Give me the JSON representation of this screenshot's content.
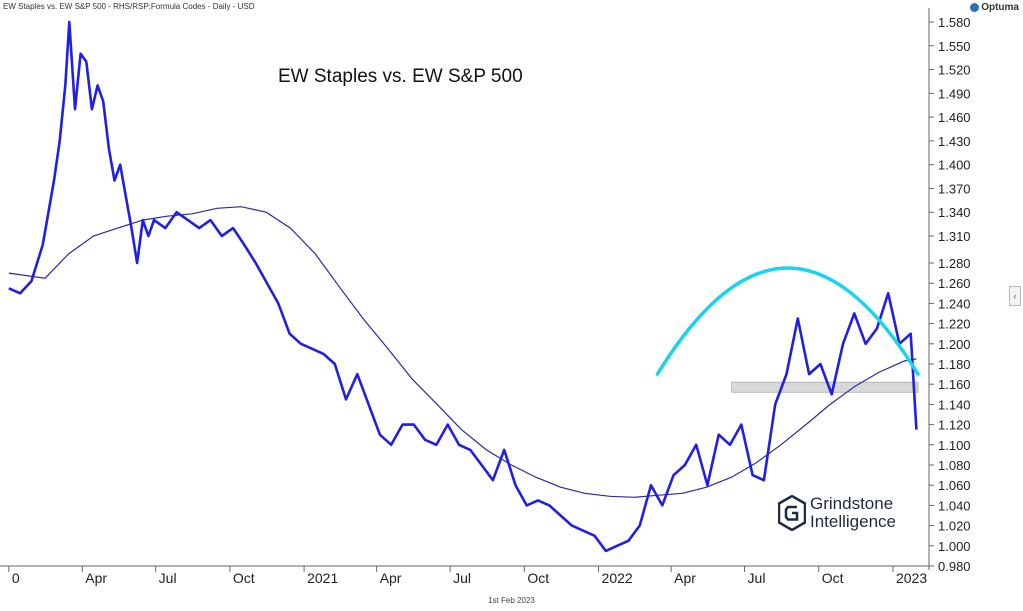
{
  "header": {
    "description": "EW Staples vs. EW S&P 500 - RHS/RSP:Formula Codes - Daily - USD",
    "brand": "Optuma"
  },
  "footer_date": "1st Feb 2023",
  "logo": {
    "line1": "Grindstone",
    "line2": "Intelligence"
  },
  "colors": {
    "price_line": "#1f1fe6",
    "moving_average": "#2a2aa0",
    "arc": "#19d3f0",
    "support_band": "#d8d8d8",
    "axis_text": "#222222"
  },
  "chart_data": {
    "type": "line",
    "title": "EW Staples vs. EW S&P 500",
    "y_axis": {
      "side": "right",
      "ylim": [
        0.98,
        1.59
      ],
      "ticks": [
        "1.580",
        "1.550",
        "1.520",
        "1.490",
        "1.460",
        "1.430",
        "1.400",
        "1.370",
        "1.340",
        "1.310",
        "1.280",
        "1.260",
        "1.240",
        "1.220",
        "1.200",
        "1.180",
        "1.160",
        "1.140",
        "1.120",
        "1.100",
        "1.080",
        "1.060",
        "1.040",
        "1.020",
        "1.000",
        "0.980"
      ]
    },
    "x_axis": {
      "start": "2019-12-26",
      "end": "2023-02-01",
      "tick_labels": [
        {
          "label": "0",
          "date": "2020-01-01"
        },
        {
          "label": "Apr",
          "date": "2020-04-01"
        },
        {
          "label": "Jul",
          "date": "2020-07-01"
        },
        {
          "label": "Oct",
          "date": "2020-10-01"
        },
        {
          "label": "2021",
          "date": "2021-01-01"
        },
        {
          "label": "Apr",
          "date": "2021-04-01"
        },
        {
          "label": "Jul",
          "date": "2021-07-01"
        },
        {
          "label": "Oct",
          "date": "2021-10-01"
        },
        {
          "label": "2022",
          "date": "2022-01-01"
        },
        {
          "label": "Apr",
          "date": "2022-04-01"
        },
        {
          "label": "Jul",
          "date": "2022-07-01"
        },
        {
          "label": "Oct",
          "date": "2022-10-01"
        },
        {
          "label": "2023",
          "date": "2023-01-01"
        }
      ]
    },
    "grid": false,
    "series": [
      {
        "role": "price",
        "points": [
          [
            "2020-01-01",
            1.255
          ],
          [
            "2020-01-15",
            1.25
          ],
          [
            "2020-01-29",
            1.262
          ],
          [
            "2020-02-12",
            1.3
          ],
          [
            "2020-02-26",
            1.38
          ],
          [
            "2020-03-04",
            1.43
          ],
          [
            "2020-03-11",
            1.5
          ],
          [
            "2020-03-16",
            1.58
          ],
          [
            "2020-03-23",
            1.47
          ],
          [
            "2020-03-30",
            1.54
          ],
          [
            "2020-04-06",
            1.53
          ],
          [
            "2020-04-13",
            1.47
          ],
          [
            "2020-04-20",
            1.5
          ],
          [
            "2020-04-27",
            1.48
          ],
          [
            "2020-05-04",
            1.42
          ],
          [
            "2020-05-11",
            1.38
          ],
          [
            "2020-05-18",
            1.4
          ],
          [
            "2020-05-25",
            1.36
          ],
          [
            "2020-06-01",
            1.32
          ],
          [
            "2020-06-08",
            1.28
          ],
          [
            "2020-06-15",
            1.33
          ],
          [
            "2020-06-22",
            1.31
          ],
          [
            "2020-06-29",
            1.33
          ],
          [
            "2020-07-13",
            1.32
          ],
          [
            "2020-07-27",
            1.34
          ],
          [
            "2020-08-10",
            1.33
          ],
          [
            "2020-08-24",
            1.32
          ],
          [
            "2020-09-07",
            1.33
          ],
          [
            "2020-09-21",
            1.31
          ],
          [
            "2020-10-05",
            1.32
          ],
          [
            "2020-10-19",
            1.3
          ],
          [
            "2020-11-02",
            1.28
          ],
          [
            "2020-11-16",
            1.26
          ],
          [
            "2020-11-30",
            1.24
          ],
          [
            "2020-12-14",
            1.21
          ],
          [
            "2020-12-28",
            1.2
          ],
          [
            "2021-01-11",
            1.195
          ],
          [
            "2021-01-25",
            1.19
          ],
          [
            "2021-02-08",
            1.18
          ],
          [
            "2021-02-22",
            1.145
          ],
          [
            "2021-03-08",
            1.17
          ],
          [
            "2021-03-22",
            1.14
          ],
          [
            "2021-04-05",
            1.11
          ],
          [
            "2021-04-19",
            1.1
          ],
          [
            "2021-05-03",
            1.12
          ],
          [
            "2021-05-17",
            1.12
          ],
          [
            "2021-05-31",
            1.105
          ],
          [
            "2021-06-14",
            1.1
          ],
          [
            "2021-06-28",
            1.12
          ],
          [
            "2021-07-12",
            1.1
          ],
          [
            "2021-07-26",
            1.095
          ],
          [
            "2021-08-09",
            1.08
          ],
          [
            "2021-08-23",
            1.065
          ],
          [
            "2021-09-06",
            1.095
          ],
          [
            "2021-09-20",
            1.06
          ],
          [
            "2021-10-04",
            1.04
          ],
          [
            "2021-10-18",
            1.045
          ],
          [
            "2021-11-01",
            1.04
          ],
          [
            "2021-11-15",
            1.03
          ],
          [
            "2021-11-29",
            1.02
          ],
          [
            "2021-12-13",
            1.015
          ],
          [
            "2021-12-27",
            1.01
          ],
          [
            "2022-01-10",
            0.995
          ],
          [
            "2022-01-24",
            1.0
          ],
          [
            "2022-02-07",
            1.005
          ],
          [
            "2022-02-21",
            1.02
          ],
          [
            "2022-03-07",
            1.06
          ],
          [
            "2022-03-21",
            1.04
          ],
          [
            "2022-04-04",
            1.07
          ],
          [
            "2022-04-18",
            1.08
          ],
          [
            "2022-05-02",
            1.1
          ],
          [
            "2022-05-16",
            1.06
          ],
          [
            "2022-05-30",
            1.11
          ],
          [
            "2022-06-13",
            1.1
          ],
          [
            "2022-06-27",
            1.12
          ],
          [
            "2022-07-11",
            1.07
          ],
          [
            "2022-07-25",
            1.065
          ],
          [
            "2022-08-08",
            1.14
          ],
          [
            "2022-08-22",
            1.17
          ],
          [
            "2022-09-05",
            1.225
          ],
          [
            "2022-09-19",
            1.17
          ],
          [
            "2022-10-03",
            1.18
          ],
          [
            "2022-10-17",
            1.15
          ],
          [
            "2022-10-31",
            1.2
          ],
          [
            "2022-11-14",
            1.23
          ],
          [
            "2022-11-28",
            1.2
          ],
          [
            "2022-12-12",
            1.215
          ],
          [
            "2022-12-26",
            1.25
          ],
          [
            "2023-01-09",
            1.2
          ],
          [
            "2023-01-23",
            1.21
          ],
          [
            "2023-01-30",
            1.115
          ]
        ]
      },
      {
        "role": "moving_average",
        "points": [
          [
            "2020-01-01",
            1.27
          ],
          [
            "2020-02-15",
            1.265
          ],
          [
            "2020-03-15",
            1.29
          ],
          [
            "2020-04-15",
            1.31
          ],
          [
            "2020-05-15",
            1.32
          ],
          [
            "2020-06-15",
            1.33
          ],
          [
            "2020-07-15",
            1.335
          ],
          [
            "2020-08-15",
            1.338
          ],
          [
            "2020-09-15",
            1.345
          ],
          [
            "2020-10-15",
            1.347
          ],
          [
            "2020-11-15",
            1.34
          ],
          [
            "2020-12-15",
            1.32
          ],
          [
            "2021-01-15",
            1.29
          ],
          [
            "2021-02-15",
            1.255
          ],
          [
            "2021-03-15",
            1.225
          ],
          [
            "2021-04-15",
            1.195
          ],
          [
            "2021-05-15",
            1.165
          ],
          [
            "2021-06-15",
            1.14
          ],
          [
            "2021-07-15",
            1.115
          ],
          [
            "2021-08-15",
            1.095
          ],
          [
            "2021-09-15",
            1.08
          ],
          [
            "2021-10-15",
            1.068
          ],
          [
            "2021-11-15",
            1.058
          ],
          [
            "2021-12-15",
            1.052
          ],
          [
            "2022-01-15",
            1.049
          ],
          [
            "2022-02-15",
            1.048
          ],
          [
            "2022-03-15",
            1.05
          ],
          [
            "2022-04-15",
            1.052
          ],
          [
            "2022-05-15",
            1.058
          ],
          [
            "2022-06-15",
            1.068
          ],
          [
            "2022-07-15",
            1.082
          ],
          [
            "2022-08-15",
            1.1
          ],
          [
            "2022-09-15",
            1.12
          ],
          [
            "2022-10-15",
            1.14
          ],
          [
            "2022-11-15",
            1.158
          ],
          [
            "2022-12-15",
            1.172
          ],
          [
            "2023-01-15",
            1.183
          ],
          [
            "2023-01-30",
            1.185
          ]
        ]
      }
    ],
    "annotations": {
      "arc": {
        "start": "2022-03-15",
        "end": "2023-02-01",
        "peak_value": 1.275,
        "base_value": 1.17
      },
      "support_band": {
        "from": "2022-06-15",
        "to": "2023-02-01",
        "low": 1.152,
        "high": 1.162
      }
    }
  }
}
